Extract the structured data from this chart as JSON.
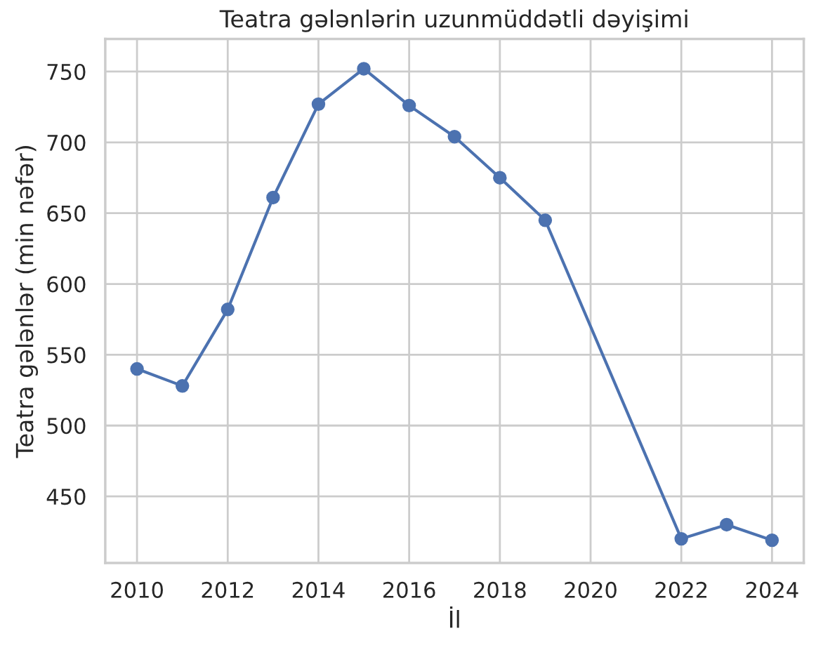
{
  "chart_data": {
    "type": "line",
    "title": "Teatra gələnlərin uzunmüddətli dəyişimi",
    "xlabel": "İl",
    "ylabel": "Teatra gələnlər (min nəfər)",
    "x": [
      2010,
      2011,
      2012,
      2013,
      2014,
      2015,
      2016,
      2017,
      2018,
      2019,
      2022,
      2023,
      2024
    ],
    "series": [
      {
        "color": "#4c72b0",
        "values": [
          540,
          528,
          582,
          661,
          727,
          752,
          726,
          704,
          675,
          645,
          420,
          430,
          419
        ]
      }
    ],
    "xlim": [
      2009.3,
      2024.7
    ],
    "ylim": [
      403,
      773
    ],
    "xticks": [
      2010,
      2012,
      2014,
      2016,
      2018,
      2020,
      2022,
      2024
    ],
    "yticks": [
      450,
      500,
      550,
      600,
      650,
      700,
      750
    ],
    "grid": true,
    "marker": "circle",
    "line_style": "solid",
    "legend": false
  }
}
